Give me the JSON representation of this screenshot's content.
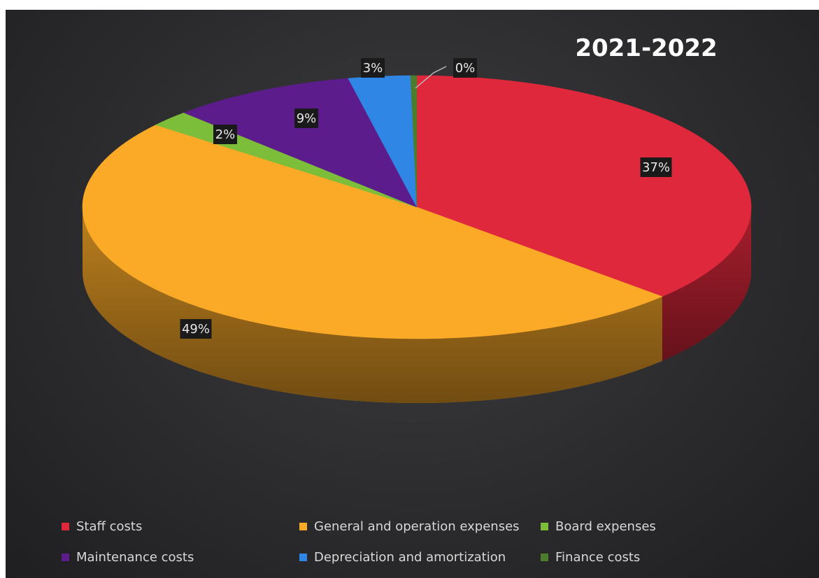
{
  "chart_data": {
    "type": "pie",
    "title": "2021-2022",
    "slices": [
      {
        "name": "Staff costs",
        "value": 37,
        "label": "37%",
        "color": "#e0283c"
      },
      {
        "name": "General and operation expenses",
        "value": 49,
        "label": "49%",
        "color": "#fbaa28"
      },
      {
        "name": "Board expenses",
        "value": 2,
        "label": "2%",
        "color": "#7cbd3a"
      },
      {
        "name": "Maintenance costs",
        "value": 9,
        "label": "9%",
        "color": "#5c1c8c"
      },
      {
        "name": "Depreciation and amortization",
        "value": 3,
        "label": "3%",
        "color": "#2f86e4"
      },
      {
        "name": "Finance costs",
        "value": 0.3,
        "label": "0%",
        "color": "#4c7c2c"
      }
    ],
    "legend_position": "bottom",
    "style": "3d"
  }
}
